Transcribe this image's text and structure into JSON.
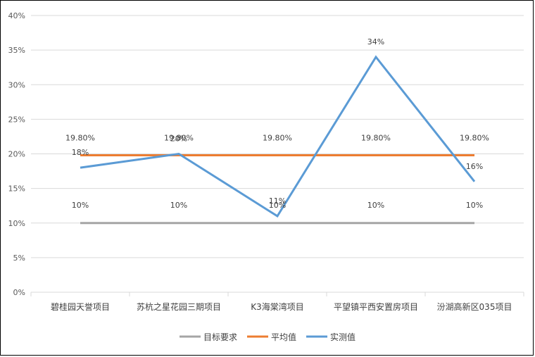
{
  "chart_data": {
    "type": "line",
    "title": "",
    "xlabel": "",
    "ylabel": "",
    "categories": [
      "碧桂园天誉项目",
      "苏杭之星花园三期项目",
      "K3海棠湾项目",
      "平望镇平西安置房项目",
      "汾湖高新区035项目"
    ],
    "ylim": [
      0,
      40
    ],
    "yticks": [
      0,
      5,
      10,
      15,
      20,
      25,
      30,
      35,
      40
    ],
    "ytick_labels": [
      "0%",
      "5%",
      "10%",
      "15%",
      "20%",
      "25%",
      "30%",
      "35%",
      "40%"
    ],
    "grid": true,
    "legend_position": "bottom",
    "series": [
      {
        "name": "目标要求",
        "color": "#A5A5A5",
        "values": [
          10,
          10,
          10,
          10,
          10
        ],
        "labels": [
          "10%",
          "10%",
          "10%",
          "10%",
          "10%"
        ]
      },
      {
        "name": "平均值",
        "color": "#ED7D31",
        "values": [
          19.8,
          19.8,
          19.8,
          19.8,
          19.8
        ],
        "labels": [
          "19.80%",
          "19.80%",
          "19.80%",
          "19.80%",
          "19.80%"
        ]
      },
      {
        "name": "实测值",
        "color": "#5B9BD5",
        "values": [
          18,
          20,
          11,
          34,
          16
        ],
        "labels": [
          "18%",
          "20%",
          "11%",
          "34%",
          "16%"
        ]
      }
    ]
  }
}
